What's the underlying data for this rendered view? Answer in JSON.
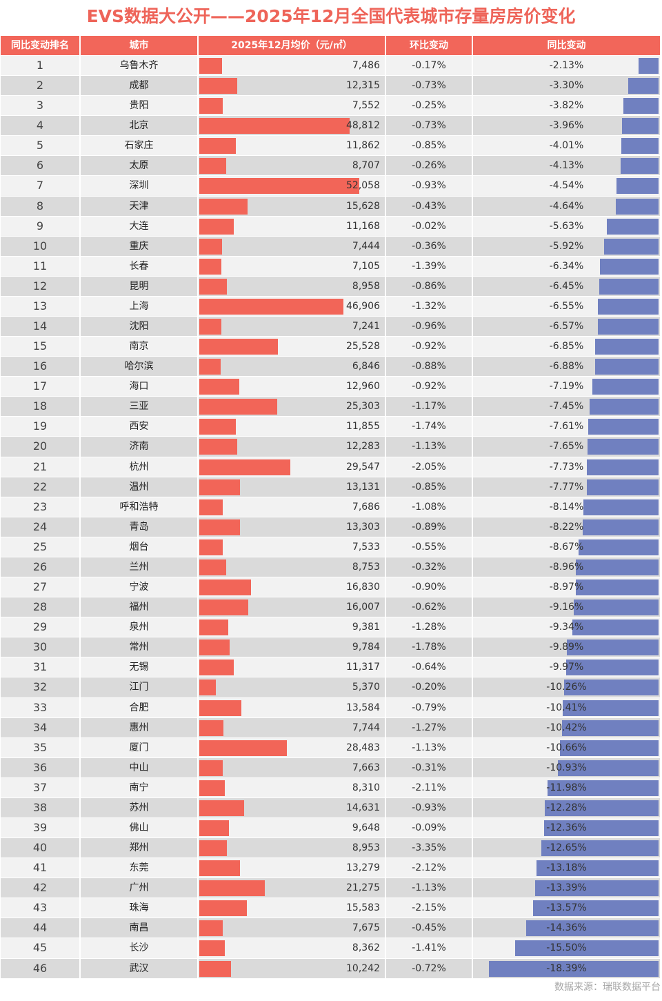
{
  "title": "EVS数据大公开——2025年12月全国代表城市存量房房价变化",
  "headers": {
    "rank": "同比变动排名",
    "city": "城市",
    "price": "2025年12月均价（元/㎡）",
    "mom": "环比变动",
    "yoy": "同比变动"
  },
  "colors": {
    "header_bg": "#F2665A",
    "price_bar": "#F26558",
    "yoy_bar": "#7080C0",
    "row_odd": "#F2F2F2",
    "row_even": "#DADADA",
    "title": "#EE6459"
  },
  "source": "数据来源：瑞联数据平台",
  "rows": [
    {
      "rank": "1",
      "city": "乌鲁木齐",
      "price": "7,486",
      "mom": "-0.17%",
      "yoy": "-2.13%"
    },
    {
      "rank": "2",
      "city": "成都",
      "price": "12,315",
      "mom": "-0.73%",
      "yoy": "-3.30%"
    },
    {
      "rank": "3",
      "city": "贵阳",
      "price": "7,552",
      "mom": "-0.25%",
      "yoy": "-3.82%"
    },
    {
      "rank": "4",
      "city": "北京",
      "price": "48,812",
      "mom": "-0.73%",
      "yoy": "-3.96%"
    },
    {
      "rank": "5",
      "city": "石家庄",
      "price": "11,862",
      "mom": "-0.85%",
      "yoy": "-4.01%"
    },
    {
      "rank": "6",
      "city": "太原",
      "price": "8,707",
      "mom": "-0.26%",
      "yoy": "-4.13%"
    },
    {
      "rank": "7",
      "city": "深圳",
      "price": "52,058",
      "mom": "-0.93%",
      "yoy": "-4.54%"
    },
    {
      "rank": "8",
      "city": "天津",
      "price": "15,628",
      "mom": "-0.43%",
      "yoy": "-4.64%"
    },
    {
      "rank": "9",
      "city": "大连",
      "price": "11,168",
      "mom": "-0.02%",
      "yoy": "-5.63%"
    },
    {
      "rank": "10",
      "city": "重庆",
      "price": "7,444",
      "mom": "-0.36%",
      "yoy": "-5.92%"
    },
    {
      "rank": "11",
      "city": "长春",
      "price": "7,105",
      "mom": "-1.39%",
      "yoy": "-6.34%"
    },
    {
      "rank": "12",
      "city": "昆明",
      "price": "8,958",
      "mom": "-0.86%",
      "yoy": "-6.45%"
    },
    {
      "rank": "13",
      "city": "上海",
      "price": "46,906",
      "mom": "-1.32%",
      "yoy": "-6.55%"
    },
    {
      "rank": "14",
      "city": "沈阳",
      "price": "7,241",
      "mom": "-0.96%",
      "yoy": "-6.57%"
    },
    {
      "rank": "15",
      "city": "南京",
      "price": "25,528",
      "mom": "-0.92%",
      "yoy": "-6.85%"
    },
    {
      "rank": "16",
      "city": "哈尔滨",
      "price": "6,846",
      "mom": "-0.88%",
      "yoy": "-6.88%"
    },
    {
      "rank": "17",
      "city": "海口",
      "price": "12,960",
      "mom": "-0.92%",
      "yoy": "-7.19%"
    },
    {
      "rank": "18",
      "city": "三亚",
      "price": "25,303",
      "mom": "-1.17%",
      "yoy": "-7.45%"
    },
    {
      "rank": "19",
      "city": "西安",
      "price": "11,855",
      "mom": "-1.74%",
      "yoy": "-7.61%"
    },
    {
      "rank": "20",
      "city": "济南",
      "price": "12,283",
      "mom": "-1.13%",
      "yoy": "-7.65%"
    },
    {
      "rank": "21",
      "city": "杭州",
      "price": "29,547",
      "mom": "-2.05%",
      "yoy": "-7.73%"
    },
    {
      "rank": "22",
      "city": "温州",
      "price": "13,131",
      "mom": "-0.85%",
      "yoy": "-7.77%"
    },
    {
      "rank": "23",
      "city": "呼和浩特",
      "price": "7,686",
      "mom": "-1.08%",
      "yoy": "-8.14%"
    },
    {
      "rank": "24",
      "city": "青岛",
      "price": "13,303",
      "mom": "-0.89%",
      "yoy": "-8.22%"
    },
    {
      "rank": "25",
      "city": "烟台",
      "price": "7,533",
      "mom": "-0.55%",
      "yoy": "-8.67%"
    },
    {
      "rank": "26",
      "city": "兰州",
      "price": "8,753",
      "mom": "-0.32%",
      "yoy": "-8.96%"
    },
    {
      "rank": "27",
      "city": "宁波",
      "price": "16,830",
      "mom": "-0.90%",
      "yoy": "-8.97%"
    },
    {
      "rank": "28",
      "city": "福州",
      "price": "16,007",
      "mom": "-0.62%",
      "yoy": "-9.16%"
    },
    {
      "rank": "29",
      "city": "泉州",
      "price": "9,381",
      "mom": "-1.28%",
      "yoy": "-9.34%"
    },
    {
      "rank": "30",
      "city": "常州",
      "price": "9,784",
      "mom": "-1.78%",
      "yoy": "-9.89%"
    },
    {
      "rank": "31",
      "city": "无锡",
      "price": "11,317",
      "mom": "-0.64%",
      "yoy": "-9.97%"
    },
    {
      "rank": "32",
      "city": "江门",
      "price": "5,370",
      "mom": "-0.20%",
      "yoy": "-10.26%"
    },
    {
      "rank": "33",
      "city": "合肥",
      "price": "13,584",
      "mom": "-0.79%",
      "yoy": "-10.41%"
    },
    {
      "rank": "34",
      "city": "惠州",
      "price": "7,744",
      "mom": "-1.27%",
      "yoy": "-10.42%"
    },
    {
      "rank": "35",
      "city": "厦门",
      "price": "28,483",
      "mom": "-1.13%",
      "yoy": "-10.66%"
    },
    {
      "rank": "36",
      "city": "中山",
      "price": "7,663",
      "mom": "-0.31%",
      "yoy": "-10.93%"
    },
    {
      "rank": "37",
      "city": "南宁",
      "price": "8,310",
      "mom": "-2.11%",
      "yoy": "-11.98%"
    },
    {
      "rank": "38",
      "city": "苏州",
      "price": "14,631",
      "mom": "-0.93%",
      "yoy": "-12.28%"
    },
    {
      "rank": "39",
      "city": "佛山",
      "price": "9,648",
      "mom": "-0.09%",
      "yoy": "-12.36%"
    },
    {
      "rank": "40",
      "city": "郑州",
      "price": "8,953",
      "mom": "-3.35%",
      "yoy": "-12.65%"
    },
    {
      "rank": "41",
      "city": "东莞",
      "price": "13,279",
      "mom": "-2.12%",
      "yoy": "-13.18%"
    },
    {
      "rank": "42",
      "city": "广州",
      "price": "21,275",
      "mom": "-1.13%",
      "yoy": "-13.39%"
    },
    {
      "rank": "43",
      "city": "珠海",
      "price": "15,583",
      "mom": "-2.15%",
      "yoy": "-13.57%"
    },
    {
      "rank": "44",
      "city": "南昌",
      "price": "7,675",
      "mom": "-0.45%",
      "yoy": "-14.36%"
    },
    {
      "rank": "45",
      "city": "长沙",
      "price": "8,362",
      "mom": "-1.41%",
      "yoy": "-15.50%"
    },
    {
      "rank": "46",
      "city": "武汉",
      "price": "10,242",
      "mom": "-0.72%",
      "yoy": "-18.39%"
    }
  ],
  "chart_data": {
    "type": "table",
    "title": "EVS数据大公开——2025年12月全国代表城市存量房房价变化",
    "columns": [
      "同比变动排名",
      "城市",
      "2025年12月均价（元/㎡）",
      "环比变动",
      "同比变动"
    ],
    "categories": [
      "乌鲁木齐",
      "成都",
      "贵阳",
      "北京",
      "石家庄",
      "太原",
      "深圳",
      "天津",
      "大连",
      "重庆",
      "长春",
      "昆明",
      "上海",
      "沈阳",
      "南京",
      "哈尔滨",
      "海口",
      "三亚",
      "西安",
      "济南",
      "杭州",
      "温州",
      "呼和浩特",
      "青岛",
      "烟台",
      "兰州",
      "宁波",
      "福州",
      "泉州",
      "常州",
      "无锡",
      "江门",
      "合肥",
      "惠州",
      "厦门",
      "中山",
      "南宁",
      "苏州",
      "佛山",
      "郑州",
      "东莞",
      "广州",
      "珠海",
      "南昌",
      "长沙",
      "武汉"
    ],
    "series": [
      {
        "name": "2025年12月均价（元/㎡）",
        "values": [
          7486,
          12315,
          7552,
          48812,
          11862,
          8707,
          52058,
          15628,
          11168,
          7444,
          7105,
          8958,
          46906,
          7241,
          25528,
          6846,
          12960,
          25303,
          11855,
          12283,
          29547,
          13131,
          7686,
          13303,
          7533,
          8753,
          16830,
          16007,
          9381,
          9784,
          11317,
          5370,
          13584,
          7744,
          28483,
          7663,
          8310,
          14631,
          9648,
          8953,
          13279,
          21275,
          15583,
          7675,
          8362,
          10242
        ]
      },
      {
        "name": "环比变动(%)",
        "values": [
          -0.17,
          -0.73,
          -0.25,
          -0.73,
          -0.85,
          -0.26,
          -0.93,
          -0.43,
          -0.02,
          -0.36,
          -1.39,
          -0.86,
          -1.32,
          -0.96,
          -0.92,
          -0.88,
          -0.92,
          -1.17,
          -1.74,
          -1.13,
          -2.05,
          -0.85,
          -1.08,
          -0.89,
          -0.55,
          -0.32,
          -0.9,
          -0.62,
          -1.28,
          -1.78,
          -0.64,
          -0.2,
          -0.79,
          -1.27,
          -1.13,
          -0.31,
          -2.11,
          -0.93,
          -0.09,
          -3.35,
          -2.12,
          -1.13,
          -2.15,
          -0.45,
          -1.41,
          -0.72
        ]
      },
      {
        "name": "同比变动(%)",
        "values": [
          -2.13,
          -3.3,
          -3.82,
          -3.96,
          -4.01,
          -4.13,
          -4.54,
          -4.64,
          -5.63,
          -5.92,
          -6.34,
          -6.45,
          -6.55,
          -6.57,
          -6.85,
          -6.88,
          -7.19,
          -7.45,
          -7.61,
          -7.65,
          -7.73,
          -7.77,
          -8.14,
          -8.22,
          -8.67,
          -8.96,
          -8.97,
          -9.16,
          -9.34,
          -9.89,
          -9.97,
          -10.26,
          -10.41,
          -10.42,
          -10.66,
          -10.93,
          -11.98,
          -12.28,
          -12.36,
          -12.65,
          -13.18,
          -13.39,
          -13.57,
          -14.36,
          -15.5,
          -18.39
        ]
      }
    ],
    "annotations": [
      "数据来源：瑞联数据平台"
    ]
  }
}
